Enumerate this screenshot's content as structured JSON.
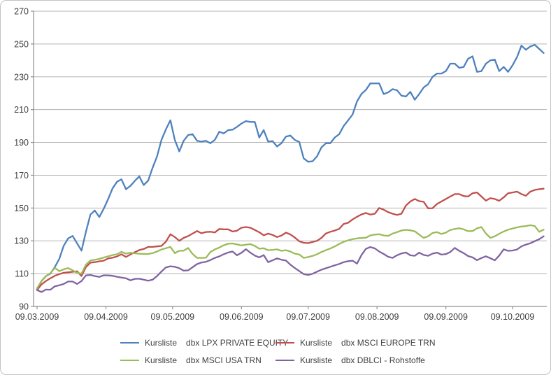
{
  "chart_data": {
    "type": "line",
    "title": "",
    "xlabel": "",
    "ylabel": "",
    "grid": true,
    "legend_position": "bottom",
    "background": "#FFFFFF",
    "border_color": "#C3C3C3",
    "grid_color": "#B5B5B5",
    "axis_color": "#8F8F8F",
    "text_color": "#3F3F3F",
    "y_axis": {
      "min": 90,
      "max": 270,
      "step": 20,
      "tick_labels": [
        "270",
        "250",
        "230",
        "210",
        "190",
        "170",
        "150",
        "130",
        "110",
        "90"
      ]
    },
    "x_axis": {
      "tick_labels": [
        "09.03.2009",
        "09.04.2009",
        "09.05.2009",
        "09.06.2009",
        "09.07.2009",
        "09.08.2009",
        "09.09.2009",
        "09.10.2009"
      ],
      "tick_days": [
        0,
        31,
        61,
        92,
        122,
        153,
        184,
        214
      ],
      "total_days": 228,
      "sample_interval_days": 2
    },
    "series": [
      {
        "id": "lpx-private-equity",
        "legend_prefix": "Kursliste",
        "legend_label": "dbx LPX PRIVATE EQUITY",
        "color": "#4F81BD",
        "values": [
          100.5,
          105.5,
          108.5,
          110,
          114,
          119,
          127,
          131.5,
          133,
          128.5,
          124,
          135.5,
          146,
          148.5,
          144.5,
          149.5,
          155.5,
          162,
          166,
          167.5,
          161.5,
          163.5,
          166.5,
          169.3,
          164,
          166.7,
          174.5,
          181.5,
          191.5,
          198,
          203.5,
          191.5,
          184.5,
          191,
          194.5,
          195,
          191,
          190.5,
          191,
          189.5,
          191.5,
          196.5,
          195.5,
          197.5,
          197.8,
          199.5,
          201.5,
          203,
          202.5,
          202.5,
          193,
          197.5,
          190.5,
          190.8,
          187.5,
          189.5,
          193.5,
          194.2,
          191.5,
          190.3,
          180.3,
          178.2,
          178.5,
          181.5,
          187,
          189.5,
          189.5,
          193,
          195,
          200,
          203.5,
          207,
          215,
          219.5,
          222,
          226,
          226,
          226,
          219.5,
          220.5,
          222.5,
          221.8,
          218.5,
          218,
          220.8,
          216,
          219.5,
          223.5,
          225.5,
          230,
          232,
          232,
          233.5,
          238,
          238,
          235.5,
          236,
          241,
          242.5,
          233,
          233.5,
          238,
          240,
          240.5,
          233.5,
          236,
          233,
          237,
          242,
          249,
          246.5,
          248.5,
          249.5,
          247,
          244.5
        ]
      },
      {
        "id": "msci-europe-trn",
        "legend_prefix": "Kursliste",
        "legend_label": "dbx MSCI EUROPE TRN",
        "color": "#C0504D",
        "values": [
          100,
          103.5,
          105.5,
          107.2,
          108.7,
          109.7,
          110.5,
          110.8,
          111.1,
          111.4,
          108.6,
          114,
          116.7,
          117,
          117.5,
          117.9,
          119.3,
          119.7,
          120.5,
          121.8,
          120.2,
          121.7,
          123.1,
          124.4,
          125,
          126.3,
          126.3,
          126.6,
          126.9,
          129.5,
          134,
          132.3,
          130,
          131.8,
          132.9,
          134.4,
          136,
          134.6,
          135.4,
          135.5,
          135.1,
          137.2,
          137,
          137,
          135.7,
          136.2,
          138,
          138.4,
          138,
          136.6,
          135.2,
          133.4,
          134.4,
          133.6,
          132.3,
          133.2,
          135,
          133.9,
          132,
          129.7,
          128.8,
          128.6,
          129.3,
          130,
          131.8,
          134.5,
          135.5,
          136.3,
          137.3,
          140.3,
          141,
          143,
          144.7,
          146.1,
          147,
          146,
          146.5,
          150,
          149,
          147.5,
          146.5,
          145.8,
          146.5,
          151.5,
          154,
          155.5,
          154.2,
          153.8,
          149.8,
          149.9,
          152.5,
          154,
          155.5,
          157,
          158.5,
          158.5,
          157.3,
          157,
          159,
          159.5,
          157,
          154.5,
          156,
          155.5,
          154.4,
          156.5,
          159,
          159.5,
          160,
          158.5,
          157.5,
          160,
          161,
          161.5,
          161.8
        ]
      },
      {
        "id": "msci-usa-trn",
        "legend_prefix": "Kursliste",
        "legend_label": "dbx MSCI USA TRN",
        "color": "#9BBB59",
        "values": [
          101,
          105.5,
          108.5,
          110.3,
          113.5,
          111.5,
          112.6,
          113.4,
          112,
          110.5,
          110,
          115.5,
          118,
          118.4,
          119,
          119.8,
          120.6,
          121.3,
          121.8,
          123.3,
          122.2,
          122.7,
          122.4,
          122.1,
          122,
          122,
          122.5,
          123.5,
          124.7,
          125.5,
          126.3,
          122.5,
          123.9,
          124,
          125.6,
          122,
          119.6,
          119.6,
          119.7,
          123.2,
          124.7,
          125.9,
          127.3,
          128.2,
          128.4,
          127.8,
          127.2,
          127.6,
          128,
          126.9,
          125.2,
          125.5,
          124.3,
          124.5,
          124.8,
          123.9,
          124.3,
          123.5,
          122.2,
          121.7,
          119.6,
          120.1,
          120.8,
          121.8,
          123.2,
          124.3,
          125.3,
          126.6,
          128.1,
          129.4,
          130.3,
          131,
          131.5,
          131.7,
          131.9,
          133.3,
          133.8,
          134,
          133.3,
          133,
          134.4,
          135.3,
          136.3,
          136.7,
          136.4,
          135.8,
          133.8,
          131.8,
          132.8,
          134.8,
          135.3,
          134.2,
          135,
          136.6,
          137.2,
          137.7,
          137,
          135.9,
          136,
          137.6,
          138.4,
          134.5,
          131.8,
          132.8,
          134.3,
          135.7,
          136.8,
          137.5,
          138.2,
          138.7,
          139,
          139.5,
          139,
          135.5,
          136.8
        ]
      },
      {
        "id": "dblci-rohstoffe",
        "legend_prefix": "Kursliste",
        "legend_label": "dbx DBLCI - Rohstoffe",
        "color": "#8064A2",
        "values": [
          100,
          98.8,
          100.3,
          100.2,
          102.3,
          102.9,
          103.7,
          105.2,
          105.2,
          103.7,
          105.5,
          108.9,
          109.2,
          108.5,
          108,
          109,
          108.9,
          108.7,
          108.1,
          107.6,
          107.2,
          105.9,
          106.8,
          106.9,
          106.3,
          105.7,
          106.3,
          108.5,
          111.3,
          113.8,
          114.5,
          114.2,
          113.3,
          111.8,
          112,
          113.9,
          115.8,
          116.8,
          117.2,
          118.3,
          119.6,
          120.5,
          121.8,
          122.9,
          123.5,
          121.2,
          122.7,
          124.9,
          122.8,
          121,
          119.9,
          121.3,
          117,
          118.1,
          119.3,
          118.5,
          118,
          115.5,
          113.4,
          111.6,
          109.7,
          109.2,
          109.9,
          111.2,
          112.4,
          113.3,
          114.2,
          115.1,
          115.9,
          117,
          117.6,
          117.9,
          116.1,
          121.3,
          125.1,
          126.2,
          125.4,
          123.5,
          122,
          120.3,
          119.6,
          121.2,
          122.3,
          122.9,
          121.2,
          120.9,
          122.8,
          121.4,
          120.9,
          122.2,
          122.8,
          121.6,
          121.9,
          123.2,
          125.7,
          123.9,
          122.5,
          120.7,
          119.9,
          118.2,
          119.5,
          120.6,
          119.4,
          118.1,
          121,
          124.8,
          123.9,
          124.1,
          124.7,
          126.6,
          127.7,
          128.5,
          129.8,
          131,
          132.8
        ]
      }
    ]
  }
}
